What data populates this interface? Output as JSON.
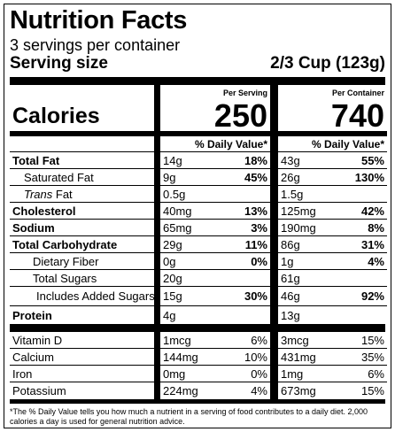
{
  "title": "Nutrition Facts",
  "servings_per_container": "3 servings per container",
  "serving_size_label": "Serving size",
  "serving_size_value": "2/3 Cup (123g)",
  "col_header_serving": "Per Serving",
  "col_header_container": "Per Container",
  "calories_label": "Calories",
  "calories_serving": "250",
  "calories_container": "740",
  "dv_header": "% Daily Value*",
  "nutrients": [
    {
      "name": "Total Fat",
      "s_amt": "14g",
      "s_dv": "18%",
      "c_amt": "43g",
      "c_dv": "55%"
    },
    {
      "name": "Saturated Fat",
      "s_amt": "9g",
      "s_dv": "45%",
      "c_amt": "26g",
      "c_dv": "130%"
    },
    {
      "name_italic": "Trans",
      "name_rest": " Fat",
      "s_amt": "0.5g",
      "s_dv": "",
      "c_amt": "1.5g",
      "c_dv": ""
    },
    {
      "name": "Cholesterol",
      "s_amt": "40mg",
      "s_dv": "13%",
      "c_amt": "125mg",
      "c_dv": "42%"
    },
    {
      "name": "Sodium",
      "s_amt": "65mg",
      "s_dv": "3%",
      "c_amt": "190mg",
      "c_dv": "8%"
    },
    {
      "name": "Total Carbohydrate",
      "s_amt": "29g",
      "s_dv": "11%",
      "c_amt": "86g",
      "c_dv": "31%"
    },
    {
      "name": "Dietary Fiber",
      "s_amt": "0g",
      "s_dv": "0%",
      "c_amt": "1g",
      "c_dv": "4%"
    },
    {
      "name": "Total Sugars",
      "s_amt": "20g",
      "s_dv": "",
      "c_amt": "61g",
      "c_dv": ""
    },
    {
      "name": "Includes Added Sugars",
      "s_amt": "15g",
      "s_dv": "30%",
      "c_amt": "46g",
      "c_dv": "92%"
    },
    {
      "name": "Protein",
      "s_amt": "4g",
      "s_dv": "",
      "c_amt": "13g",
      "c_dv": ""
    }
  ],
  "vitamins": [
    {
      "name": "Vitamin D",
      "s_amt": "1mcg",
      "s_dv": "6%",
      "c_amt": "3mcg",
      "c_dv": "15%"
    },
    {
      "name": "Calcium",
      "s_amt": "144mg",
      "s_dv": "10%",
      "c_amt": "431mg",
      "c_dv": "35%"
    },
    {
      "name": "Iron",
      "s_amt": "0mg",
      "s_dv": "0%",
      "c_amt": "1mg",
      "c_dv": "6%"
    },
    {
      "name": "Potassium",
      "s_amt": "224mg",
      "s_dv": "4%",
      "c_amt": "673mg",
      "c_dv": "15%"
    }
  ],
  "footnote": "*The % Daily Value tells you how much a nutrient in a serving of food contributes to a daily diet. 2,000 calories a day is used for general nutrition advice."
}
